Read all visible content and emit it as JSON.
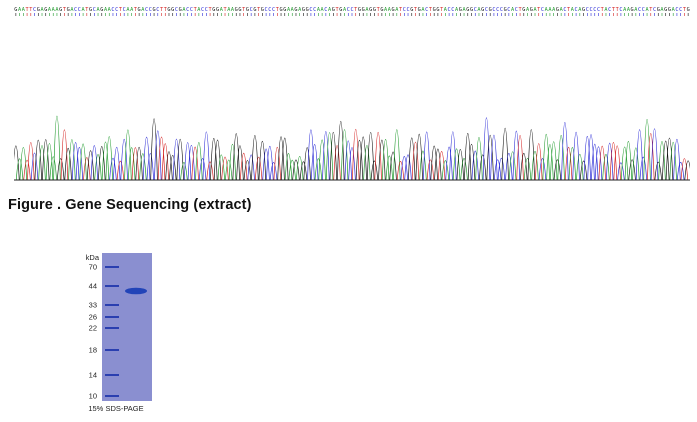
{
  "sequence": {
    "bases": "GAATTCGAGAAAGTGACCATGCAGAACCTCAATGACCGCTTGGCGACCTACCTGGATAAGGTGCGTGCCCTGGAAGAGGCCAACAGTGACCTGGAGGTGAAGATCCGTGACTGGTACCAGAGGCAGCGCCCGCACTGAGATCAAAGACTACAGCCCCTACTTCAAGACCATCGAGGACCTG",
    "colors": {
      "A": "#1f9a2c",
      "C": "#2a2ad6",
      "G": "#111111",
      "T": "#d42020"
    }
  },
  "caption": "Figure . Gene Sequencing (extract)",
  "gel": {
    "unit_label": "kDa",
    "markers": [
      "70",
      "44",
      "33",
      "26",
      "22",
      "18",
      "14",
      "10"
    ],
    "footer": "15% SDS-PAGE",
    "lane_color": "#8a8fd0",
    "band_color": "#2244b8"
  }
}
